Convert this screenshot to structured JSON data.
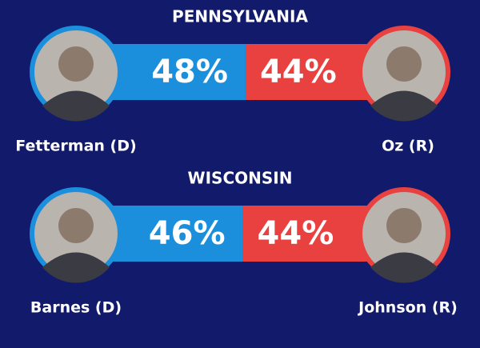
{
  "races": [
    {
      "state": "PENNSYLVANIA",
      "candidates": [
        {
          "name": "Fetterman (D)",
          "value": 48,
          "value_label": "48%",
          "color": "#1b8fdc"
        },
        {
          "name": "Oz (R)",
          "value": 44,
          "value_label": "44%",
          "color": "#e8413f"
        }
      ]
    },
    {
      "state": "WISCONSIN",
      "candidates": [
        {
          "name": "Barnes (D)",
          "value": 46,
          "value_label": "46%",
          "color": "#1b8fdc"
        },
        {
          "name": "Johnson (R)",
          "value": 44,
          "value_label": "44%",
          "color": "#e8413f"
        }
      ]
    }
  ]
}
